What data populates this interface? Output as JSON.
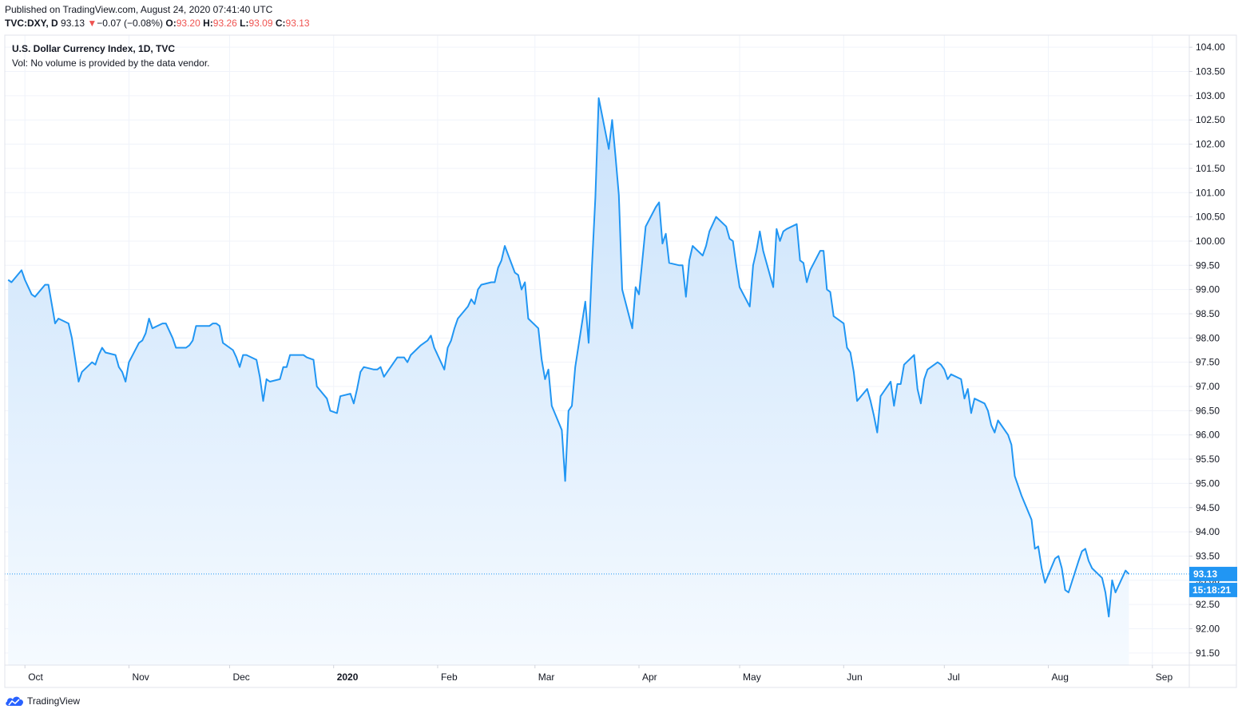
{
  "header": {
    "published": "Published on TradingView.com, August 24, 2020 07:41:40 UTC",
    "symbol": "TVC:DXY, D",
    "last": "93.13",
    "change_arrow": "▼",
    "change": "−0.07 (−0.08%)",
    "o_label": "O:",
    "o_value": "93.20",
    "h_label": "H:",
    "h_value": "93.26",
    "l_label": "L:",
    "l_value": "93.09",
    "c_label": "C:",
    "c_value": "93.13"
  },
  "legend": {
    "title": "U.S. Dollar Currency Index, 1D, TVC",
    "volume_note": "Vol: No volume is provided by the data vendor."
  },
  "price_label": {
    "value": "93.13",
    "countdown": "15:18:21"
  },
  "footer": {
    "brand": "TradingView"
  },
  "colors": {
    "line": "#2196f3",
    "fill_top": "#c9e2fb",
    "fill_bottom": "#f5faff",
    "label_bg": "#2196f3",
    "down": "#ef5350"
  },
  "chart_data": {
    "type": "area",
    "title": "U.S. Dollar Currency Index, 1D, TVC",
    "ylim": [
      91.25,
      104.25
    ],
    "yticks": [
      "104.00",
      "103.50",
      "103.00",
      "102.50",
      "102.00",
      "101.50",
      "101.00",
      "100.50",
      "100.00",
      "99.50",
      "99.00",
      "98.50",
      "98.00",
      "97.50",
      "97.00",
      "96.50",
      "96.00",
      "95.50",
      "95.00",
      "94.50",
      "94.00",
      "93.50",
      "93.00",
      "92.50",
      "92.00",
      "91.50"
    ],
    "xticks": [
      {
        "label": "Oct",
        "x": "2019-10-01",
        "bold": false
      },
      {
        "label": "Nov",
        "x": "2019-11-01",
        "bold": false
      },
      {
        "label": "Dec",
        "x": "2019-12-01",
        "bold": false
      },
      {
        "label": "2020",
        "x": "2020-01-01",
        "bold": true
      },
      {
        "label": "Feb",
        "x": "2020-02-01",
        "bold": false
      },
      {
        "label": "Mar",
        "x": "2020-03-01",
        "bold": false
      },
      {
        "label": "Apr",
        "x": "2020-04-01",
        "bold": false
      },
      {
        "label": "May",
        "x": "2020-05-01",
        "bold": false
      },
      {
        "label": "Jun",
        "x": "2020-06-01",
        "bold": false
      },
      {
        "label": "Jul",
        "x": "2020-07-01",
        "bold": false
      },
      {
        "label": "Aug",
        "x": "2020-08-01",
        "bold": false
      },
      {
        "label": "Sep",
        "x": "2020-09-01",
        "bold": false
      }
    ],
    "last_price": 93.13,
    "series": [
      {
        "points": [
          [
            "2019-09-26",
            99.2
          ],
          [
            "2019-09-27",
            99.15
          ],
          [
            "2019-09-30",
            99.4
          ],
          [
            "2019-10-01",
            99.2
          ],
          [
            "2019-10-02",
            99.05
          ],
          [
            "2019-10-03",
            98.9
          ],
          [
            "2019-10-04",
            98.85
          ],
          [
            "2019-10-07",
            99.1
          ],
          [
            "2019-10-08",
            99.1
          ],
          [
            "2019-10-09",
            98.7
          ],
          [
            "2019-10-10",
            98.3
          ],
          [
            "2019-10-11",
            98.4
          ],
          [
            "2019-10-14",
            98.3
          ],
          [
            "2019-10-15",
            98.0
          ],
          [
            "2019-10-16",
            97.55
          ],
          [
            "2019-10-17",
            97.1
          ],
          [
            "2019-10-18",
            97.3
          ],
          [
            "2019-10-21",
            97.5
          ],
          [
            "2019-10-22",
            97.45
          ],
          [
            "2019-10-23",
            97.65
          ],
          [
            "2019-10-24",
            97.8
          ],
          [
            "2019-10-25",
            97.7
          ],
          [
            "2019-10-28",
            97.65
          ],
          [
            "2019-10-29",
            97.4
          ],
          [
            "2019-10-30",
            97.3
          ],
          [
            "2019-10-31",
            97.1
          ],
          [
            "2019-11-01",
            97.5
          ],
          [
            "2019-11-04",
            97.9
          ],
          [
            "2019-11-05",
            97.95
          ],
          [
            "2019-11-06",
            98.1
          ],
          [
            "2019-11-07",
            98.4
          ],
          [
            "2019-11-08",
            98.2
          ],
          [
            "2019-11-11",
            98.3
          ],
          [
            "2019-11-12",
            98.3
          ],
          [
            "2019-11-13",
            98.15
          ],
          [
            "2019-11-14",
            98.0
          ],
          [
            "2019-11-15",
            97.8
          ],
          [
            "2019-11-18",
            97.8
          ],
          [
            "2019-11-19",
            97.85
          ],
          [
            "2019-11-20",
            97.95
          ],
          [
            "2019-11-21",
            98.25
          ],
          [
            "2019-11-22",
            98.25
          ],
          [
            "2019-11-25",
            98.25
          ],
          [
            "2019-11-26",
            98.3
          ],
          [
            "2019-11-27",
            98.3
          ],
          [
            "2019-11-28",
            98.25
          ],
          [
            "2019-11-29",
            97.9
          ],
          [
            "2019-12-02",
            97.75
          ],
          [
            "2019-12-03",
            97.6
          ],
          [
            "2019-12-04",
            97.4
          ],
          [
            "2019-12-05",
            97.65
          ],
          [
            "2019-12-06",
            97.65
          ],
          [
            "2019-12-09",
            97.55
          ],
          [
            "2019-12-10",
            97.2
          ],
          [
            "2019-12-11",
            96.7
          ],
          [
            "2019-12-12",
            97.15
          ],
          [
            "2019-12-13",
            97.1
          ],
          [
            "2019-12-16",
            97.15
          ],
          [
            "2019-12-17",
            97.4
          ],
          [
            "2019-12-18",
            97.4
          ],
          [
            "2019-12-19",
            97.65
          ],
          [
            "2019-12-20",
            97.65
          ],
          [
            "2019-12-23",
            97.65
          ],
          [
            "2019-12-24",
            97.6
          ],
          [
            "2019-12-26",
            97.55
          ],
          [
            "2019-12-27",
            97.0
          ],
          [
            "2019-12-30",
            96.75
          ],
          [
            "2019-12-31",
            96.5
          ],
          [
            "2020-01-02",
            96.45
          ],
          [
            "2020-01-03",
            96.8
          ],
          [
            "2020-01-06",
            96.85
          ],
          [
            "2020-01-07",
            96.65
          ],
          [
            "2020-01-08",
            96.95
          ],
          [
            "2020-01-09",
            97.3
          ],
          [
            "2020-01-10",
            97.4
          ],
          [
            "2020-01-13",
            97.35
          ],
          [
            "2020-01-14",
            97.35
          ],
          [
            "2020-01-15",
            97.4
          ],
          [
            "2020-01-16",
            97.2
          ],
          [
            "2020-01-17",
            97.3
          ],
          [
            "2020-01-20",
            97.6
          ],
          [
            "2020-01-21",
            97.6
          ],
          [
            "2020-01-22",
            97.6
          ],
          [
            "2020-01-23",
            97.5
          ],
          [
            "2020-01-24",
            97.65
          ],
          [
            "2020-01-27",
            97.85
          ],
          [
            "2020-01-28",
            97.9
          ],
          [
            "2020-01-29",
            97.95
          ],
          [
            "2020-01-30",
            98.05
          ],
          [
            "2020-01-31",
            97.8
          ],
          [
            "2020-02-03",
            97.35
          ],
          [
            "2020-02-04",
            97.8
          ],
          [
            "2020-02-05",
            97.95
          ],
          [
            "2020-02-06",
            98.2
          ],
          [
            "2020-02-07",
            98.4
          ],
          [
            "2020-02-10",
            98.65
          ],
          [
            "2020-02-11",
            98.8
          ],
          [
            "2020-02-12",
            98.7
          ],
          [
            "2020-02-13",
            99.0
          ],
          [
            "2020-02-14",
            99.1
          ],
          [
            "2020-02-17",
            99.15
          ],
          [
            "2020-02-18",
            99.15
          ],
          [
            "2020-02-19",
            99.45
          ],
          [
            "2020-02-20",
            99.6
          ],
          [
            "2020-02-21",
            99.9
          ],
          [
            "2020-02-24",
            99.35
          ],
          [
            "2020-02-25",
            99.3
          ],
          [
            "2020-02-26",
            99.0
          ],
          [
            "2020-02-27",
            99.15
          ],
          [
            "2020-02-28",
            98.4
          ],
          [
            "2020-03-02",
            98.2
          ],
          [
            "2020-03-03",
            97.55
          ],
          [
            "2020-03-04",
            97.15
          ],
          [
            "2020-03-05",
            97.35
          ],
          [
            "2020-03-06",
            96.6
          ],
          [
            "2020-03-09",
            96.1
          ],
          [
            "2020-03-10",
            95.05
          ],
          [
            "2020-03-11",
            96.5
          ],
          [
            "2020-03-12",
            96.6
          ],
          [
            "2020-03-13",
            97.4
          ],
          [
            "2020-03-16",
            98.75
          ],
          [
            "2020-03-17",
            97.9
          ],
          [
            "2020-03-18",
            99.5
          ],
          [
            "2020-03-19",
            100.9
          ],
          [
            "2020-03-20",
            102.95
          ],
          [
            "2020-03-23",
            101.9
          ],
          [
            "2020-03-24",
            102.5
          ],
          [
            "2020-03-25",
            101.75
          ],
          [
            "2020-03-26",
            100.95
          ],
          [
            "2020-03-27",
            99.0
          ],
          [
            "2020-03-30",
            98.2
          ],
          [
            "2020-03-31",
            99.05
          ],
          [
            "2020-04-01",
            98.9
          ],
          [
            "2020-04-02",
            99.6
          ],
          [
            "2020-04-03",
            100.3
          ],
          [
            "2020-04-06",
            100.7
          ],
          [
            "2020-04-07",
            100.8
          ],
          [
            "2020-04-08",
            99.95
          ],
          [
            "2020-04-09",
            100.15
          ],
          [
            "2020-04-10",
            99.55
          ],
          [
            "2020-04-13",
            99.5
          ],
          [
            "2020-04-14",
            99.5
          ],
          [
            "2020-04-15",
            98.85
          ],
          [
            "2020-04-16",
            99.6
          ],
          [
            "2020-04-17",
            99.9
          ],
          [
            "2020-04-20",
            99.7
          ],
          [
            "2020-04-21",
            99.9
          ],
          [
            "2020-04-22",
            100.2
          ],
          [
            "2020-04-23",
            100.35
          ],
          [
            "2020-04-24",
            100.5
          ],
          [
            "2020-04-27",
            100.3
          ],
          [
            "2020-04-28",
            100.05
          ],
          [
            "2020-04-29",
            100.0
          ],
          [
            "2020-04-30",
            99.5
          ],
          [
            "2020-05-01",
            99.05
          ],
          [
            "2020-05-04",
            98.65
          ],
          [
            "2020-05-05",
            99.5
          ],
          [
            "2020-05-06",
            99.8
          ],
          [
            "2020-05-07",
            100.2
          ],
          [
            "2020-05-08",
            99.8
          ],
          [
            "2020-05-11",
            99.05
          ],
          [
            "2020-05-12",
            100.25
          ],
          [
            "2020-05-13",
            100.0
          ],
          [
            "2020-05-14",
            100.2
          ],
          [
            "2020-05-15",
            100.25
          ],
          [
            "2020-05-18",
            100.35
          ],
          [
            "2020-05-19",
            99.6
          ],
          [
            "2020-05-20",
            99.55
          ],
          [
            "2020-05-21",
            99.15
          ],
          [
            "2020-05-22",
            99.4
          ],
          [
            "2020-05-25",
            99.8
          ],
          [
            "2020-05-26",
            99.8
          ],
          [
            "2020-05-27",
            99.0
          ],
          [
            "2020-05-28",
            98.95
          ],
          [
            "2020-05-29",
            98.45
          ],
          [
            "2020-06-01",
            98.3
          ],
          [
            "2020-06-02",
            97.8
          ],
          [
            "2020-06-03",
            97.7
          ],
          [
            "2020-06-04",
            97.3
          ],
          [
            "2020-06-05",
            96.7
          ],
          [
            "2020-06-08",
            96.95
          ],
          [
            "2020-06-09",
            96.7
          ],
          [
            "2020-06-10",
            96.4
          ],
          [
            "2020-06-11",
            96.05
          ],
          [
            "2020-06-12",
            96.8
          ],
          [
            "2020-06-15",
            97.1
          ],
          [
            "2020-06-16",
            96.6
          ],
          [
            "2020-06-17",
            97.05
          ],
          [
            "2020-06-18",
            97.05
          ],
          [
            "2020-06-19",
            97.45
          ],
          [
            "2020-06-22",
            97.65
          ],
          [
            "2020-06-23",
            96.95
          ],
          [
            "2020-06-24",
            96.65
          ],
          [
            "2020-06-25",
            97.15
          ],
          [
            "2020-06-26",
            97.35
          ],
          [
            "2020-06-29",
            97.5
          ],
          [
            "2020-06-30",
            97.45
          ],
          [
            "2020-07-01",
            97.35
          ],
          [
            "2020-07-02",
            97.15
          ],
          [
            "2020-07-03",
            97.25
          ],
          [
            "2020-07-06",
            97.15
          ],
          [
            "2020-07-07",
            96.75
          ],
          [
            "2020-07-08",
            96.95
          ],
          [
            "2020-07-09",
            96.45
          ],
          [
            "2020-07-10",
            96.75
          ],
          [
            "2020-07-13",
            96.65
          ],
          [
            "2020-07-14",
            96.5
          ],
          [
            "2020-07-15",
            96.2
          ],
          [
            "2020-07-16",
            96.05
          ],
          [
            "2020-07-17",
            96.3
          ],
          [
            "2020-07-20",
            96.0
          ],
          [
            "2020-07-21",
            95.8
          ],
          [
            "2020-07-22",
            95.15
          ],
          [
            "2020-07-23",
            94.95
          ],
          [
            "2020-07-24",
            94.75
          ],
          [
            "2020-07-27",
            94.25
          ],
          [
            "2020-07-28",
            93.65
          ],
          [
            "2020-07-29",
            93.7
          ],
          [
            "2020-07-30",
            93.25
          ],
          [
            "2020-07-31",
            92.95
          ],
          [
            "2020-08-03",
            93.45
          ],
          [
            "2020-08-04",
            93.5
          ],
          [
            "2020-08-05",
            93.25
          ],
          [
            "2020-08-06",
            92.8
          ],
          [
            "2020-08-07",
            92.75
          ],
          [
            "2020-08-10",
            93.4
          ],
          [
            "2020-08-11",
            93.6
          ],
          [
            "2020-08-12",
            93.65
          ],
          [
            "2020-08-13",
            93.4
          ],
          [
            "2020-08-14",
            93.25
          ],
          [
            "2020-08-17",
            93.05
          ],
          [
            "2020-08-18",
            92.75
          ],
          [
            "2020-08-19",
            92.25
          ],
          [
            "2020-08-20",
            93.0
          ],
          [
            "2020-08-21",
            92.75
          ],
          [
            "2020-08-24",
            93.2
          ],
          [
            "2020-08-25",
            93.13
          ]
        ]
      }
    ]
  }
}
